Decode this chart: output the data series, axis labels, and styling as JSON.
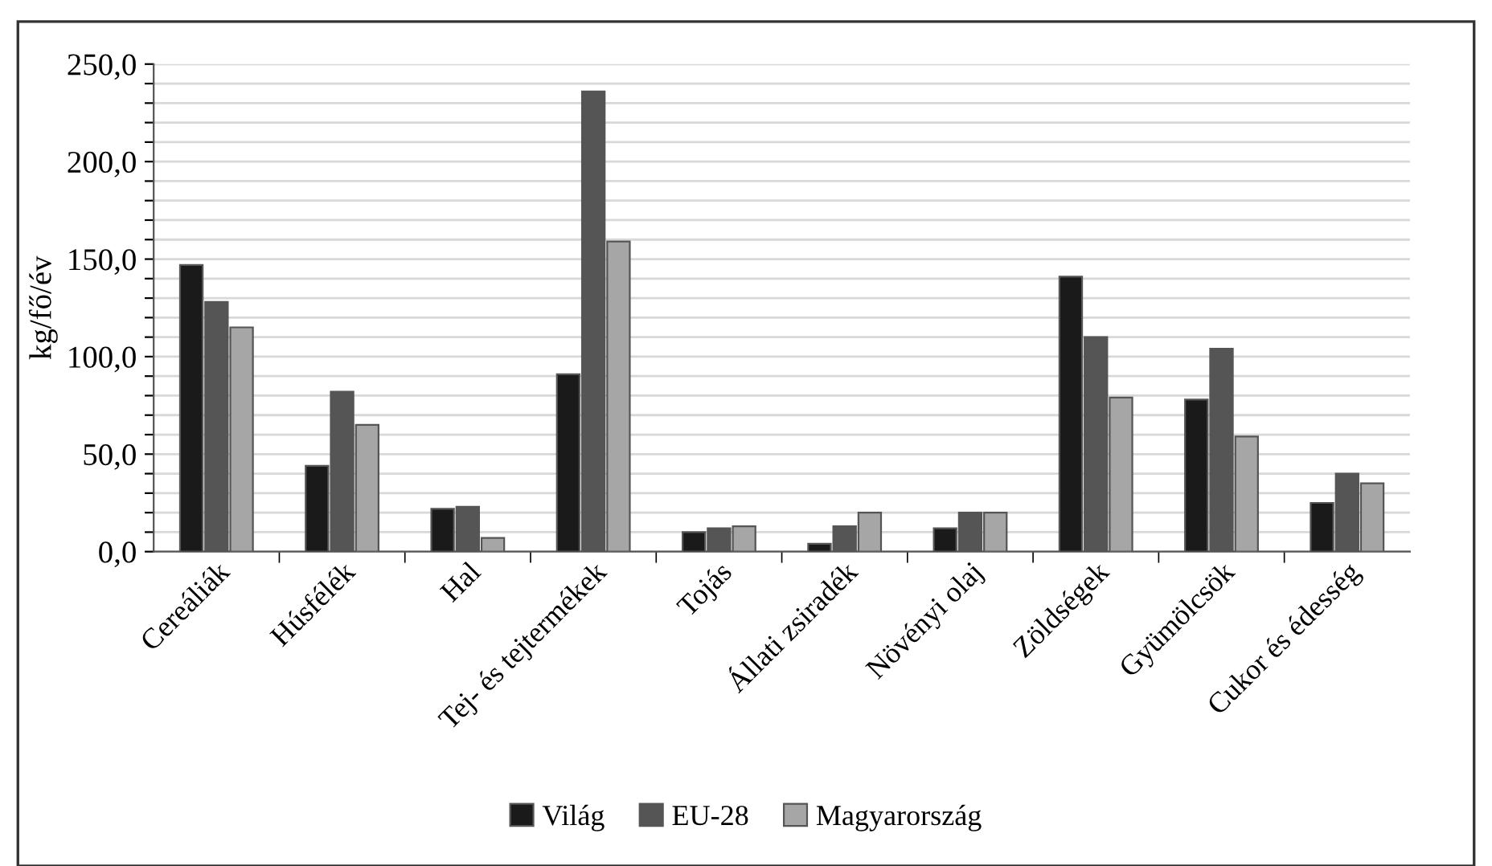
{
  "chart_data": {
    "type": "bar",
    "ylabel": "kg/fő/év",
    "categories": [
      "Cereáliák",
      "Húsfélék",
      "Hal",
      "Tej- és tejtermékek",
      "Tojás",
      "Állati zsiradék",
      "Növényi olaj",
      "Zöldségek",
      "Gyümölcsök",
      "Cukor és édesség"
    ],
    "series": [
      {
        "name": "Világ",
        "color": "#1a1a1a",
        "values": [
          147,
          44,
          22,
          91,
          10,
          4,
          12,
          141,
          78,
          25
        ]
      },
      {
        "name": "EU-28",
        "color": "#555555",
        "values": [
          128,
          82,
          23,
          236,
          12,
          13,
          20,
          110,
          104,
          40
        ]
      },
      {
        "name": "Magyarország",
        "color": "#a6a6a6",
        "values": [
          115,
          65,
          7,
          159,
          13,
          20,
          20,
          79,
          59,
          35
        ]
      }
    ],
    "ylim": [
      0,
      250
    ],
    "yticks": [
      {
        "value": 0,
        "label": "0,0"
      },
      {
        "value": 10,
        "label": null
      },
      {
        "value": 20,
        "label": null
      },
      {
        "value": 30,
        "label": null
      },
      {
        "value": 40,
        "label": null
      },
      {
        "value": 50,
        "label": "50,0"
      },
      {
        "value": 60,
        "label": null
      },
      {
        "value": 70,
        "label": null
      },
      {
        "value": 80,
        "label": null
      },
      {
        "value": 90,
        "label": null
      },
      {
        "value": 100,
        "label": "100,0"
      },
      {
        "value": 110,
        "label": null
      },
      {
        "value": 120,
        "label": null
      },
      {
        "value": 130,
        "label": null
      },
      {
        "value": 140,
        "label": null
      },
      {
        "value": 150,
        "label": "150,0"
      },
      {
        "value": 160,
        "label": null
      },
      {
        "value": 170,
        "label": null
      },
      {
        "value": 180,
        "label": null
      },
      {
        "value": 190,
        "label": null
      },
      {
        "value": 200,
        "label": "200,0"
      },
      {
        "value": 210,
        "label": null
      },
      {
        "value": 220,
        "label": null
      },
      {
        "value": 230,
        "label": null
      },
      {
        "value": 240,
        "label": null
      },
      {
        "value": 250,
        "label": "250,0"
      }
    ],
    "grid": "y",
    "legend": "bottom"
  }
}
